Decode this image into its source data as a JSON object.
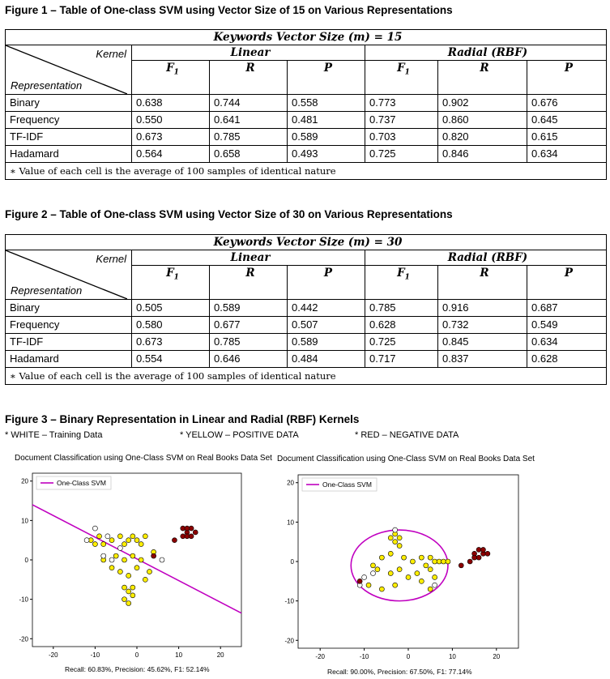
{
  "figures": [
    {
      "title": "Figure 1 – Table of One-class SVM using Vector Size of 15 on Various Representations",
      "header": "Keywords Vector Size (m) = 15",
      "kernel_label": "Kernel",
      "representation_label": "Representation",
      "linear_label": "Linear",
      "radial_label": "Radial (RBF)",
      "metrics": [
        "F1",
        "R",
        "P",
        "F1",
        "R",
        "P"
      ],
      "rows": [
        {
          "name": "Binary",
          "values": [
            "0.638",
            "0.744",
            "0.558",
            "0.773",
            "0.902",
            "0.676"
          ]
        },
        {
          "name": "Frequency",
          "values": [
            "0.550",
            "0.641",
            "0.481",
            "0.737",
            "0.860",
            "0.645"
          ]
        },
        {
          "name": "TF-IDF",
          "values": [
            "0.673",
            "0.785",
            "0.589",
            "0.703",
            "0.820",
            "0.615"
          ]
        },
        {
          "name": "Hadamard",
          "values": [
            "0.564",
            "0.658",
            "0.493",
            "0.725",
            "0.846",
            "0.634"
          ]
        }
      ],
      "note": "∗ Value of each cell is the average of 100 samples of identical nature"
    },
    {
      "title": "Figure 2 – Table of One-class SVM using Vector Size of 30 on Various Representations",
      "header": "Keywords Vector Size (m) = 30",
      "kernel_label": "Kernel",
      "representation_label": "Representation",
      "linear_label": "Linear",
      "radial_label": "Radial (RBF)",
      "metrics": [
        "F1",
        "R",
        "P",
        "F1",
        "R",
        "P"
      ],
      "rows": [
        {
          "name": "Binary",
          "values": [
            "0.505",
            "0.589",
            "0.442",
            "0.785",
            "0.916",
            "0.687"
          ]
        },
        {
          "name": "Frequency",
          "values": [
            "0.580",
            "0.677",
            "0.507",
            "0.628",
            "0.732",
            "0.549"
          ]
        },
        {
          "name": "TF-IDF",
          "values": [
            "0.673",
            "0.785",
            "0.589",
            "0.725",
            "0.845",
            "0.634"
          ]
        },
        {
          "name": "Hadamard",
          "values": [
            "0.554",
            "0.646",
            "0.484",
            "0.717",
            "0.837",
            "0.628"
          ]
        }
      ],
      "note": "∗ Value of each cell is the average of 100 samples of identical nature"
    }
  ],
  "figure3": {
    "title": "Figure 3 – Binary Representation in Linear and Radial (RBF) Kernels",
    "legend_notes": [
      "* WHITE – Training Data",
      "* YELLOW – POSITIVE DATA",
      "* RED – NEGATIVE DATA"
    ]
  },
  "chart_data": [
    {
      "type": "scatter",
      "title": "Document Classification using One-Class SVM on Real Books Data Set",
      "legend": "One-Class SVM",
      "legend_position": "top-left",
      "xlim": [
        -25,
        25
      ],
      "ylim": [
        -22,
        22
      ],
      "xticks": [
        -20,
        -10,
        0,
        10,
        20
      ],
      "yticks": [
        -20,
        -10,
        0,
        10,
        20
      ],
      "boundary": {
        "shape": "line",
        "points": [
          [
            -25,
            14
          ],
          [
            25,
            -13.5
          ]
        ],
        "color": "#c000c0"
      },
      "points": {
        "white": [
          [
            -10,
            8
          ],
          [
            -12,
            5
          ],
          [
            -7,
            6
          ],
          [
            6,
            0
          ],
          [
            -8,
            1
          ],
          [
            -4,
            3
          ],
          [
            -6,
            0
          ]
        ],
        "yellow": [
          [
            -11,
            5
          ],
          [
            -10,
            4
          ],
          [
            -8,
            4
          ],
          [
            -9,
            6
          ],
          [
            -6,
            5
          ],
          [
            -4,
            6
          ],
          [
            -3,
            4
          ],
          [
            -2,
            5
          ],
          [
            -1,
            6
          ],
          [
            0,
            5
          ],
          [
            1,
            4
          ],
          [
            2,
            6
          ],
          [
            -8,
            0
          ],
          [
            -5,
            1
          ],
          [
            -3,
            0
          ],
          [
            -1,
            1
          ],
          [
            1,
            0
          ],
          [
            -4,
            -3
          ],
          [
            -2,
            -4
          ],
          [
            0,
            -2
          ],
          [
            2,
            -5
          ],
          [
            -3,
            -7
          ],
          [
            -2,
            -8
          ],
          [
            -1,
            -9
          ],
          [
            -3,
            -10
          ],
          [
            -2,
            -11
          ],
          [
            -1,
            -7
          ],
          [
            3,
            -3
          ],
          [
            4,
            2
          ],
          [
            -6,
            -2
          ]
        ],
        "red": [
          [
            11,
            8
          ],
          [
            12,
            7
          ],
          [
            13,
            8
          ],
          [
            11,
            6
          ],
          [
            12,
            6
          ],
          [
            13,
            6
          ],
          [
            12,
            8
          ],
          [
            14,
            7
          ],
          [
            9,
            5
          ],
          [
            4,
            1
          ]
        ]
      },
      "metrics": "Recall: 60.83%,    Precision: 45.62%,    F1: 52.14%"
    },
    {
      "type": "scatter",
      "title": "Document Classification using One-Class SVM on Real Books Data Set",
      "legend": "One-Class SVM",
      "legend_position": "top-left",
      "xlim": [
        -25,
        25
      ],
      "ylim": [
        -22,
        22
      ],
      "xticks": [
        -20,
        -10,
        0,
        10,
        20
      ],
      "yticks": [
        -20,
        -10,
        0,
        10,
        20
      ],
      "boundary": {
        "shape": "ellipse",
        "center": [
          -2,
          -1
        ],
        "rx": 11,
        "ry": 9,
        "color": "#c000c0"
      },
      "points": {
        "white": [
          [
            -10,
            -4
          ],
          [
            -11,
            -6
          ],
          [
            -8,
            -3
          ],
          [
            6,
            -6
          ],
          [
            -3,
            8
          ]
        ],
        "yellow": [
          [
            -3,
            7
          ],
          [
            -2,
            6
          ],
          [
            -4,
            6
          ],
          [
            -3,
            5
          ],
          [
            -2,
            4
          ],
          [
            -6,
            1
          ],
          [
            -4,
            2
          ],
          [
            -1,
            1
          ],
          [
            1,
            0
          ],
          [
            3,
            1
          ],
          [
            -8,
            -1
          ],
          [
            -7,
            -2
          ],
          [
            -4,
            -3
          ],
          [
            -2,
            -2
          ],
          [
            0,
            -4
          ],
          [
            2,
            -3
          ],
          [
            4,
            -1
          ],
          [
            5,
            -2
          ],
          [
            5,
            1
          ],
          [
            6,
            0
          ],
          [
            7,
            0
          ],
          [
            -9,
            -6
          ],
          [
            -6,
            -7
          ],
          [
            -3,
            -6
          ],
          [
            3,
            -5
          ],
          [
            6,
            -4
          ],
          [
            5,
            -7
          ],
          [
            8,
            0
          ],
          [
            9,
            0
          ]
        ],
        "red": [
          [
            15,
            2
          ],
          [
            16,
            3
          ],
          [
            17,
            2
          ],
          [
            16,
            1
          ],
          [
            15,
            1
          ],
          [
            17,
            3
          ],
          [
            18,
            2
          ],
          [
            14,
            0
          ],
          [
            12,
            -1
          ],
          [
            -11,
            -5
          ]
        ]
      },
      "metrics": "Recall: 90.00%,    Precision: 67.50%,    F1: 77.14%"
    }
  ]
}
